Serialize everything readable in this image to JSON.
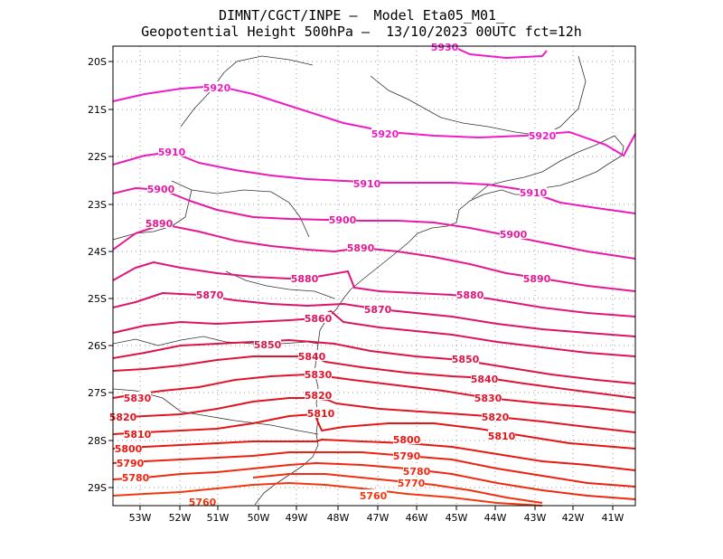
{
  "header": {
    "line1": "DIMNT/CGCT/INPE –  Model Eta05_M01_",
    "line2": "Geopotential Height 500hPa –  13/10/2023 00UTC fct=12h"
  },
  "axes": {
    "lon_labels": [
      "53W",
      "52W",
      "51W",
      "50W",
      "49W",
      "48W",
      "47W",
      "46W",
      "45W",
      "44W",
      "43W",
      "42W",
      "41W"
    ],
    "lat_labels": [
      "20S",
      "21S",
      "22S",
      "23S",
      "24S",
      "25S",
      "26S",
      "27S",
      "28S",
      "29S"
    ]
  },
  "contours": [
    {
      "level": "5930",
      "color": "#f01cc8",
      "labels": [
        "5930"
      ]
    },
    {
      "level": "5920",
      "color": "#f01cc8",
      "labels": [
        "5920",
        "5920",
        "5920"
      ]
    },
    {
      "level": "5910",
      "color": "#ec1ab8",
      "labels": [
        "5910",
        "5910",
        "5910"
      ]
    },
    {
      "level": "5900",
      "color": "#e81aa4",
      "labels": [
        "5900",
        "5900",
        "5900"
      ]
    },
    {
      "level": "5890",
      "color": "#e41890",
      "labels": [
        "5890",
        "5890",
        "5890"
      ]
    },
    {
      "level": "5880",
      "color": "#e0167c",
      "labels": [
        "5880",
        "5880"
      ]
    },
    {
      "level": "5870",
      "color": "#dc1468",
      "labels": [
        "5870",
        "5870"
      ]
    },
    {
      "level": "5860",
      "color": "#dc1458",
      "labels": [
        "5860"
      ]
    },
    {
      "level": "5850",
      "color": "#dc1446",
      "labels": [
        "5850",
        "5850"
      ]
    },
    {
      "level": "5840",
      "color": "#dc1438",
      "labels": [
        "5840",
        "5840"
      ]
    },
    {
      "level": "5830",
      "color": "#e0142c",
      "labels": [
        "5830",
        "5830",
        "5830"
      ]
    },
    {
      "level": "5820",
      "color": "#e01420",
      "labels": [
        "5820",
        "5820",
        "5820"
      ]
    },
    {
      "level": "5810",
      "color": "#e41414",
      "labels": [
        "5810",
        "5810",
        "5810"
      ]
    },
    {
      "level": "5800",
      "color": "#e81810",
      "labels": [
        "5800",
        "5800"
      ]
    },
    {
      "level": "5790",
      "color": "#ec2010",
      "labels": [
        "5790",
        "5790"
      ]
    },
    {
      "level": "5780",
      "color": "#f02810",
      "labels": [
        "5780",
        "5780"
      ]
    },
    {
      "level": "5770",
      "color": "#f03010",
      "labels": [
        "5770"
      ]
    },
    {
      "level": "5760",
      "color": "#f03810",
      "labels": [
        "5760",
        "5760"
      ]
    }
  ]
}
